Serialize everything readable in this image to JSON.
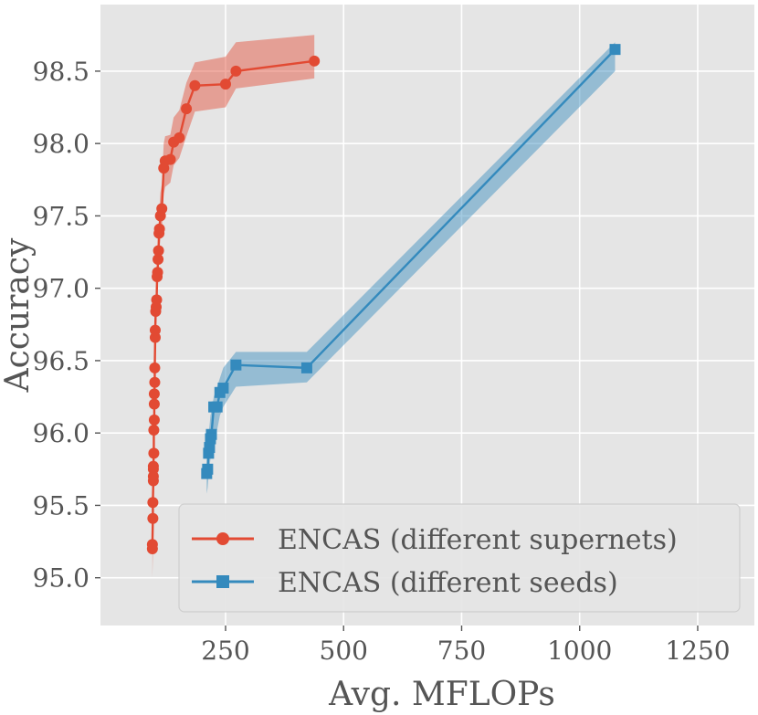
{
  "chart_data": {
    "type": "line",
    "title": "",
    "xlabel": "Avg. MFLOPs",
    "ylabel": "Accuracy",
    "xlim": [
      -15,
      1370
    ],
    "ylim": [
      94.67,
      98.96
    ],
    "xticks": [
      250,
      500,
      750,
      1000,
      1250
    ],
    "xtick_labels": [
      "250",
      "500",
      "750",
      "1000",
      "1250"
    ],
    "yticks": [
      95.0,
      95.5,
      96.0,
      96.5,
      97.0,
      97.5,
      98.0,
      98.5
    ],
    "ytick_labels": [
      "95.0",
      "95.5",
      "96.0",
      "96.5",
      "97.0",
      "97.5",
      "98.0",
      "98.5"
    ],
    "grid": true,
    "legend_position": "lower-right",
    "background": "#e5e5e5",
    "series": [
      {
        "name": "ENCAS (different supernets)",
        "marker": "circle",
        "color": "#e24a33",
        "band_color": "#e24a33",
        "x": [
          95,
          95,
          96,
          96,
          97,
          97,
          97,
          97,
          98,
          98,
          99,
          99,
          99,
          100,
          100,
          101,
          101,
          102,
          103,
          104,
          105,
          106,
          107,
          108,
          109,
          110,
          112,
          115,
          119,
          122,
          133,
          140,
          152,
          167,
          185,
          250,
          272,
          438
        ],
        "y": [
          95.2,
          95.23,
          95.41,
          95.52,
          95.67,
          95.7,
          95.75,
          95.77,
          95.86,
          96.02,
          96.09,
          96.2,
          96.27,
          96.35,
          96.45,
          96.66,
          96.71,
          96.84,
          96.87,
          96.92,
          97.08,
          97.11,
          97.2,
          97.26,
          97.38,
          97.41,
          97.5,
          97.55,
          97.83,
          97.88,
          97.89,
          98.01,
          98.04,
          98.24,
          98.4,
          98.41,
          98.5,
          98.57
        ],
        "band_upper": [
          95.25,
          95.3,
          95.5,
          95.6,
          95.75,
          95.8,
          95.85,
          95.88,
          95.95,
          96.1,
          96.2,
          96.3,
          96.38,
          96.45,
          96.55,
          96.76,
          96.82,
          96.95,
          96.98,
          97.04,
          97.2,
          97.24,
          97.33,
          97.4,
          97.52,
          97.56,
          97.66,
          97.72,
          98.0,
          98.05,
          98.06,
          98.18,
          98.23,
          98.42,
          98.56,
          98.6,
          98.7,
          98.75
        ],
        "band_lower": [
          94.85,
          95.0,
          95.15,
          95.3,
          95.45,
          95.52,
          95.58,
          95.62,
          95.7,
          95.85,
          95.93,
          96.05,
          96.12,
          96.2,
          96.3,
          96.5,
          96.56,
          96.7,
          96.74,
          96.8,
          96.95,
          96.98,
          97.07,
          97.12,
          97.22,
          97.26,
          97.35,
          97.4,
          97.65,
          97.7,
          97.73,
          97.85,
          97.9,
          98.05,
          98.22,
          98.25,
          98.38,
          98.45
        ]
      },
      {
        "name": "ENCAS (different seeds)",
        "marker": "square",
        "color": "#348abd",
        "band_color": "#348abd",
        "x": [
          210,
          212,
          214,
          216,
          218,
          220,
          225,
          232,
          238,
          245,
          272,
          422,
          1075
        ],
        "y": [
          95.72,
          95.75,
          95.86,
          95.9,
          95.96,
          95.99,
          96.18,
          96.18,
          96.28,
          96.31,
          96.47,
          96.45,
          98.65
        ],
        "band_upper": [
          95.9,
          95.95,
          96.0,
          96.05,
          96.12,
          96.15,
          96.25,
          96.32,
          96.38,
          96.45,
          96.56,
          96.56,
          98.7
        ],
        "band_lower": [
          95.58,
          95.62,
          95.7,
          95.76,
          95.82,
          95.86,
          95.95,
          96.02,
          96.12,
          96.18,
          96.32,
          96.35,
          98.5
        ]
      }
    ]
  }
}
